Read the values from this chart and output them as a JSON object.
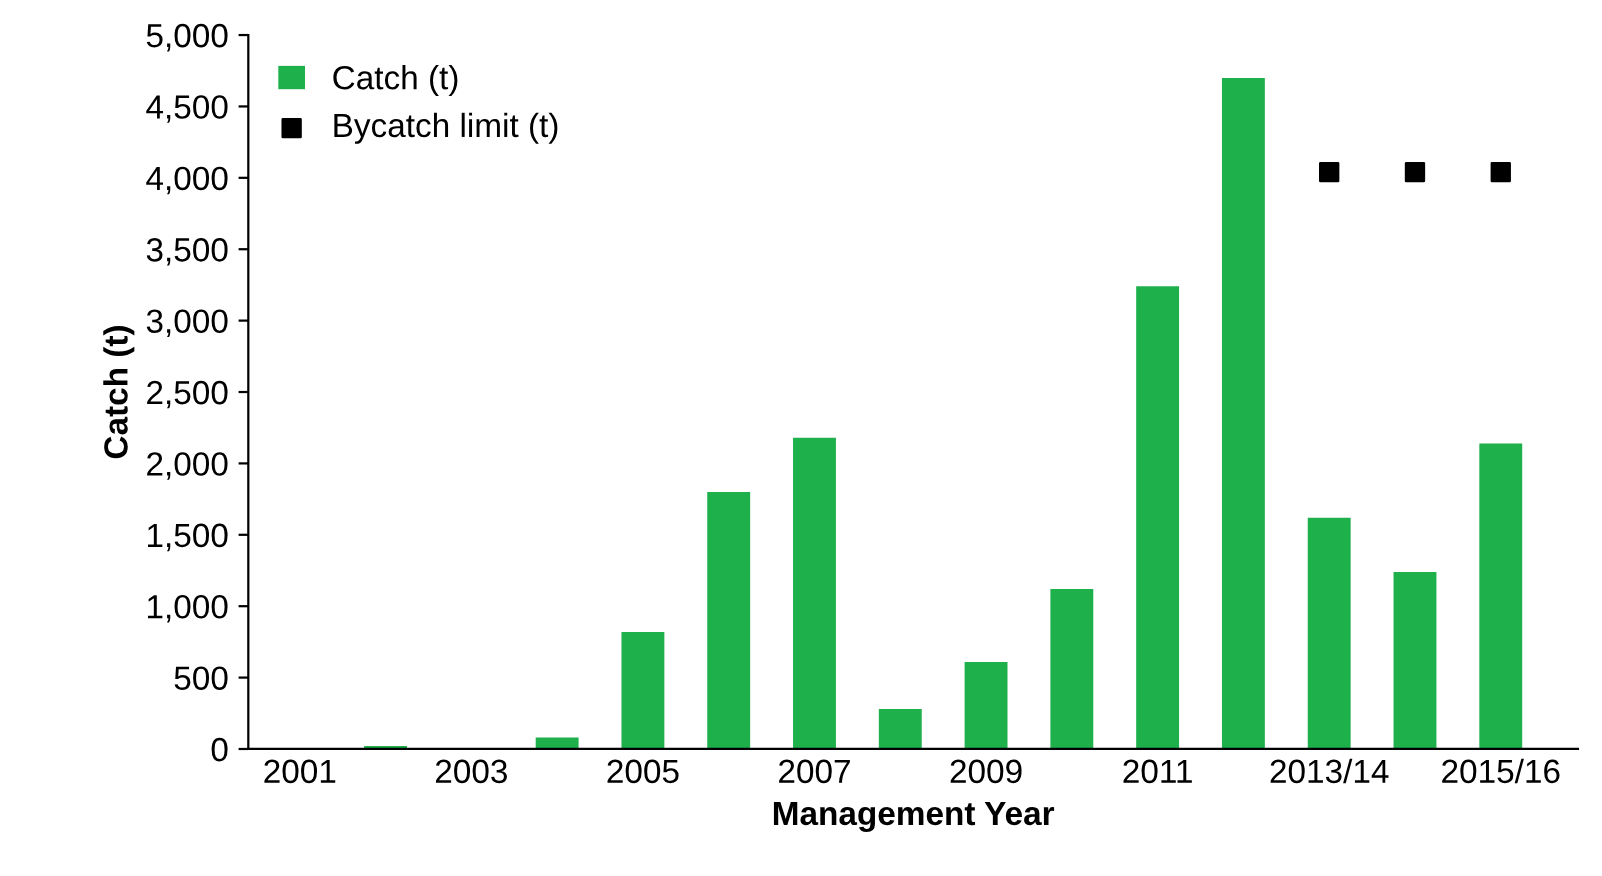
{
  "chart_data": {
    "type": "bar",
    "xlabel": "Management Year",
    "ylabel": "Catch (t)",
    "categories": [
      "2001",
      null,
      "2003",
      null,
      "2005",
      null,
      "2007",
      null,
      "2009",
      null,
      "2011",
      null,
      "2013/14",
      null,
      "2015/16"
    ],
    "series": [
      {
        "name": "Catch (t)",
        "color": "#1db04b",
        "values": [
          0,
          20,
          0,
          80,
          820,
          1800,
          2180,
          280,
          610,
          1120,
          3240,
          4700,
          1620,
          1240,
          2140
        ]
      },
      {
        "name": "Bycatch limit (t)",
        "type": "scatter",
        "color": "#000000",
        "marker": "square",
        "values": [
          null,
          null,
          null,
          null,
          null,
          null,
          null,
          null,
          null,
          null,
          null,
          null,
          4040,
          4040,
          4040
        ]
      }
    ],
    "ylim": [
      0,
      5000
    ],
    "yticks": [
      {
        "value": 0,
        "label": "0"
      },
      {
        "value": 500,
        "label": "500"
      },
      {
        "value": 1000,
        "label": "1,000"
      },
      {
        "value": 1500,
        "label": "1,500"
      },
      {
        "value": 2000,
        "label": "2,000"
      },
      {
        "value": 2500,
        "label": "2,500"
      },
      {
        "value": 3000,
        "label": "3,000"
      },
      {
        "value": 3500,
        "label": "3,500"
      },
      {
        "value": 4000,
        "label": "4,000"
      },
      {
        "value": 4500,
        "label": "4,500"
      },
      {
        "value": 5000,
        "label": "5,000"
      }
    ],
    "grid": false,
    "legend": "top left"
  }
}
